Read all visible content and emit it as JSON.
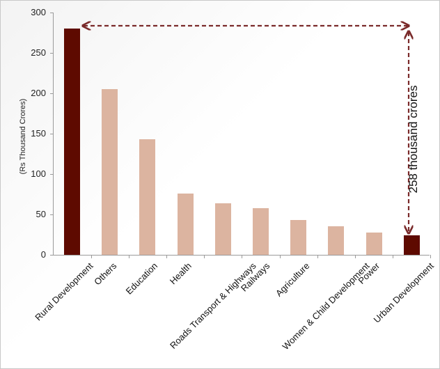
{
  "chart_data": {
    "type": "bar",
    "title": "",
    "xlabel": "",
    "ylabel": "(Rs Thousand Crores)",
    "ylim": [
      0,
      300
    ],
    "yticks": [
      0,
      50,
      100,
      150,
      200,
      250,
      300
    ],
    "grid": false,
    "categories": [
      "Rural Development",
      "Others",
      "Education",
      "Health",
      "Roads Transport & Highways",
      "Railways",
      "Agriculture",
      "Women & Child Development",
      "Power",
      "Urban Development"
    ],
    "values": [
      280,
      205,
      143,
      76,
      64,
      58,
      43,
      35,
      28,
      24
    ],
    "bar_colors": [
      "#5e0a00",
      "#dcb4a0",
      "#dcb4a0",
      "#dcb4a0",
      "#dcb4a0",
      "#dcb4a0",
      "#dcb4a0",
      "#dcb4a0",
      "#dcb4a0",
      "#5e0a00"
    ],
    "annotations": [
      {
        "text": "258 thousand crores",
        "type": "dashed-arrow",
        "from": "Rural Development",
        "to": "Urban Development",
        "color": "#7a2a2a"
      }
    ]
  },
  "labels": {
    "ylabel": "(Rs Thousand Crores)",
    "annotation": "258 thousand crores",
    "yticks": [
      "0",
      "50",
      "100",
      "150",
      "200",
      "250",
      "300"
    ]
  }
}
